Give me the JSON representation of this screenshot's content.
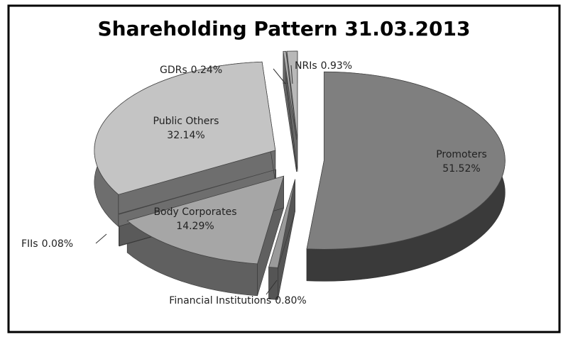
{
  "chart_data": {
    "type": "pie3d",
    "title": "Shareholding Pattern 31.03.2013",
    "categories": [
      "Promoters",
      "Financial Institutions",
      "Body Corporates",
      "FIIs",
      "Public Others",
      "GDRs",
      "NRIs"
    ],
    "values": [
      51.52,
      0.8,
      14.29,
      0.08,
      32.14,
      0.24,
      0.93
    ],
    "value_labels": [
      "51.52%",
      "0.80%",
      "14.29%",
      "0.08%",
      "32.14%",
      "0.24%",
      "0.93%"
    ],
    "colors": [
      "#7f7f7f",
      "#9a9a9a",
      "#a6a6a6",
      "#a0a0a0",
      "#c4c4c4",
      "#b0b0b0",
      "#b8b8b8"
    ],
    "side_colors": [
      "#3a3a3a",
      "#555555",
      "#606060",
      "#5a5a5a",
      "#6e6e6e",
      "#666666",
      "#6a6a6a"
    ]
  }
}
